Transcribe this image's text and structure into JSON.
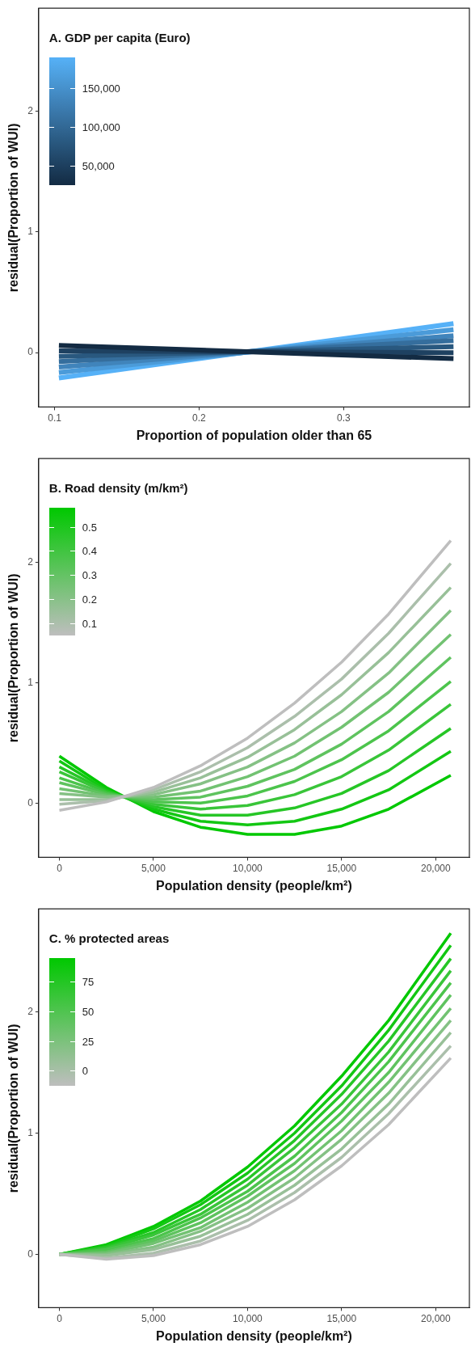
{
  "chart_data": [
    {
      "type": "line",
      "clabel": "A. GDP per capita (Euro)",
      "xlabel": "Proportion of population older than 65",
      "ylabel": "residual(Proportion of WUI)",
      "x": [
        0.103,
        0.376
      ],
      "xlim": [
        0.089,
        0.387
      ],
      "xticks": [
        0.1,
        0.2,
        0.3
      ],
      "ylim": [
        -0.45,
        2.85
      ],
      "yticks": [
        0,
        1,
        2
      ],
      "grid": false,
      "legend": false,
      "annotations": [
        "150,000",
        "100,000",
        "50,000"
      ],
      "series": [
        {
          "color": "#132b43",
          "values": [
            0.06,
            -0.05
          ]
        },
        {
          "color": "#1e4161",
          "values": [
            0.015,
            0.0
          ]
        },
        {
          "color": "#29587f",
          "values": [
            -0.03,
            0.05
          ]
        },
        {
          "color": "#356e9d",
          "values": [
            -0.075,
            0.1
          ]
        },
        {
          "color": "#4084bb",
          "values": [
            -0.12,
            0.14
          ]
        },
        {
          "color": "#4b9bd9",
          "values": [
            -0.165,
            0.19
          ]
        },
        {
          "color": "#56b1f7",
          "values": [
            -0.21,
            0.24
          ]
        }
      ]
    },
    {
      "type": "line",
      "clabel": "B. Road density (m/km²)",
      "xlabel": "Population density (people/km²)",
      "ylabel": "residual(Proportion of WUI)",
      "x": [
        0,
        2500,
        5000,
        7500,
        10000,
        12500,
        15000,
        17500,
        20800
      ],
      "xlim": [
        -1100,
        21790
      ],
      "xticks": [
        0,
        {
          "value": 5000,
          "label": "5,000"
        },
        {
          "value": 10000,
          "label": "10,000"
        },
        {
          "value": 15000,
          "label": "15,000"
        },
        {
          "value": 20000,
          "label": "20,000"
        }
      ],
      "ylim": [
        -0.45,
        2.86
      ],
      "yticks": [
        0,
        1,
        2
      ],
      "grid": false,
      "legend": false,
      "annotations": [
        "0.5",
        "0.4",
        "0.3",
        "0.2",
        "0.1"
      ],
      "series": [
        {
          "color": "#bebebe",
          "values": [
            -0.06,
            0.01,
            0.13,
            0.31,
            0.54,
            0.83,
            1.17,
            1.57,
            2.18
          ]
        },
        {
          "color": "#abbfab",
          "values": [
            -0.01,
            0.02,
            0.11,
            0.26,
            0.46,
            0.72,
            1.03,
            1.41,
            1.99
          ]
        },
        {
          "color": "#98c098",
          "values": [
            0.03,
            0.03,
            0.09,
            0.21,
            0.38,
            0.61,
            0.9,
            1.25,
            1.79
          ]
        },
        {
          "color": "#85c185",
          "values": [
            0.08,
            0.05,
            0.07,
            0.16,
            0.3,
            0.5,
            0.76,
            1.08,
            1.6
          ]
        },
        {
          "color": "#72c272",
          "values": [
            0.12,
            0.06,
            0.05,
            0.1,
            0.22,
            0.39,
            0.63,
            0.92,
            1.4
          ]
        },
        {
          "color": "#5fc35f",
          "values": [
            0.17,
            0.07,
            0.03,
            0.05,
            0.14,
            0.28,
            0.49,
            0.76,
            1.21
          ]
        },
        {
          "color": "#4cc44c",
          "values": [
            0.21,
            0.08,
            0.01,
            0.0,
            0.06,
            0.18,
            0.36,
            0.6,
            1.01
          ]
        },
        {
          "color": "#39c539",
          "values": [
            0.26,
            0.09,
            -0.01,
            -0.05,
            -0.02,
            0.07,
            0.22,
            0.44,
            0.82
          ]
        },
        {
          "color": "#26c626",
          "values": [
            0.3,
            0.1,
            -0.03,
            -0.1,
            -0.1,
            -0.04,
            0.08,
            0.27,
            0.62
          ]
        },
        {
          "color": "#13c713",
          "values": [
            0.35,
            0.11,
            -0.05,
            -0.15,
            -0.18,
            -0.15,
            -0.05,
            0.11,
            0.43
          ]
        },
        {
          "color": "#00c800",
          "values": [
            0.39,
            0.13,
            -0.07,
            -0.2,
            -0.26,
            -0.26,
            -0.19,
            -0.05,
            0.23
          ]
        }
      ]
    },
    {
      "type": "line",
      "clabel": "C. % protected areas",
      "xlabel": "Population density (people/km²)",
      "ylabel": "residual(Proportion of WUI)",
      "x": [
        0,
        2500,
        5000,
        7500,
        10000,
        12500,
        15000,
        17500,
        20800
      ],
      "xlim": [
        -1100,
        21790
      ],
      "xticks": [
        0,
        {
          "value": 5000,
          "label": "5,000"
        },
        {
          "value": 10000,
          "label": "10,000"
        },
        {
          "value": 15000,
          "label": "15,000"
        },
        {
          "value": 20000,
          "label": "20,000"
        }
      ],
      "ylim": [
        -0.44,
        2.85
      ],
      "yticks": [
        0,
        1,
        2
      ],
      "grid": false,
      "legend": false,
      "annotations": [
        "75",
        "50",
        "25",
        "0"
      ],
      "series": [
        {
          "color": "#bebebe",
          "values": [
            0,
            -0.04,
            -0.01,
            0.08,
            0.23,
            0.45,
            0.73,
            1.07,
            1.62
          ]
        },
        {
          "color": "#abbfab",
          "values": [
            0,
            -0.03,
            0.01,
            0.11,
            0.28,
            0.51,
            0.8,
            1.16,
            1.72
          ]
        },
        {
          "color": "#98c098",
          "values": [
            0,
            -0.01,
            0.04,
            0.15,
            0.33,
            0.57,
            0.87,
            1.24,
            1.83
          ]
        },
        {
          "color": "#85c185",
          "values": [
            0,
            0.0,
            0.06,
            0.19,
            0.38,
            0.63,
            0.95,
            1.33,
            1.93
          ]
        },
        {
          "color": "#72c272",
          "values": [
            0,
            0.01,
            0.09,
            0.22,
            0.43,
            0.69,
            1.02,
            1.42,
            2.03
          ]
        },
        {
          "color": "#5fc35f",
          "values": [
            0,
            0.02,
            0.11,
            0.26,
            0.48,
            0.75,
            1.1,
            1.5,
            2.14
          ]
        },
        {
          "color": "#4cc44c",
          "values": [
            0,
            0.04,
            0.13,
            0.3,
            0.52,
            0.81,
            1.17,
            1.59,
            2.24
          ]
        },
        {
          "color": "#39c539",
          "values": [
            0,
            0.05,
            0.16,
            0.33,
            0.57,
            0.88,
            1.24,
            1.67,
            2.34
          ]
        },
        {
          "color": "#26c626",
          "values": [
            0,
            0.06,
            0.18,
            0.37,
            0.62,
            0.94,
            1.32,
            1.76,
            2.44
          ]
        },
        {
          "color": "#13c713",
          "values": [
            0,
            0.07,
            0.21,
            0.41,
            0.67,
            1.0,
            1.39,
            1.85,
            2.55
          ]
        },
        {
          "color": "#00c800",
          "values": [
            0,
            0.08,
            0.23,
            0.44,
            0.72,
            1.06,
            1.47,
            1.93,
            2.65
          ]
        }
      ]
    }
  ]
}
